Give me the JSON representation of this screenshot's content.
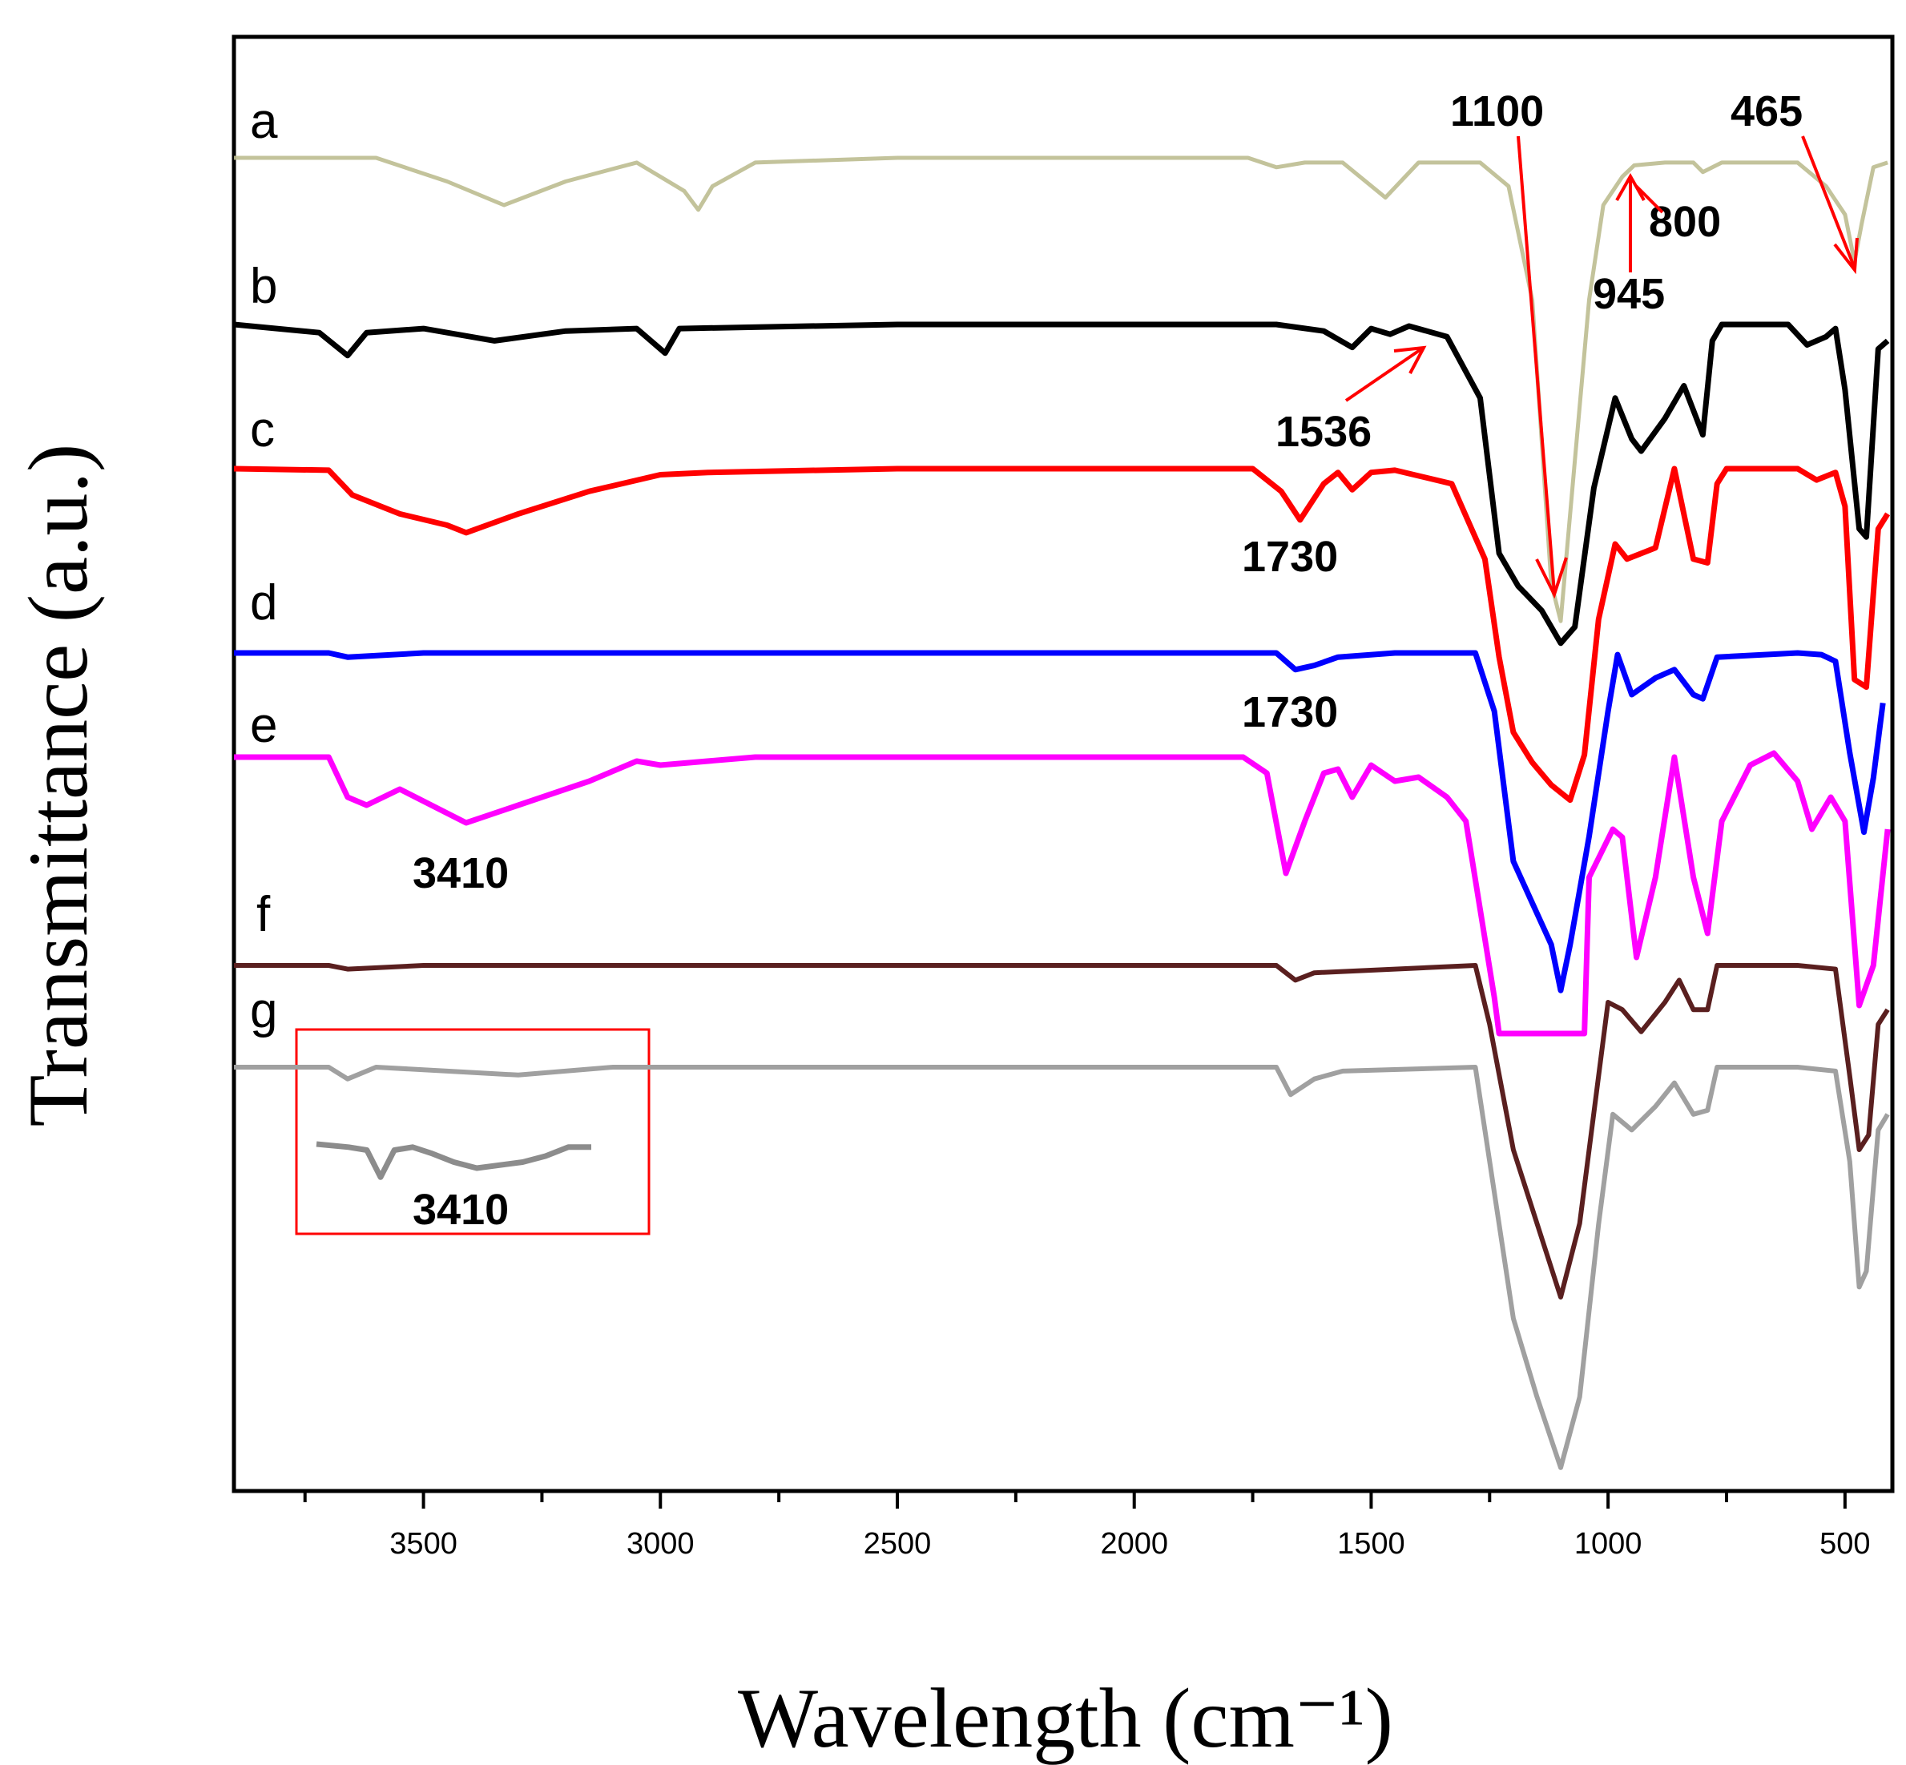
{
  "chart_data": {
    "type": "line",
    "title": "",
    "xlabel": "Wavelength (cm⁻¹)",
    "ylabel": "Transmittance (a.u.)",
    "xlim": [
      3900,
      400
    ],
    "x_reversed": true,
    "xticks": [
      3500,
      3000,
      2500,
      2000,
      1500,
      1000,
      500
    ],
    "grid": false,
    "series": [
      {
        "name": "a",
        "color": "#bcbc90",
        "points": [
          [
            3900,
            0
          ],
          [
            3600,
            0
          ],
          [
            3450,
            -0.25
          ],
          [
            3330,
            -0.5
          ],
          [
            3200,
            -0.25
          ],
          [
            3050,
            -0.05
          ],
          [
            2950,
            -0.35
          ],
          [
            2920,
            -0.55
          ],
          [
            2890,
            -0.3
          ],
          [
            2800,
            -0.05
          ],
          [
            2500,
            0
          ],
          [
            2000,
            0
          ],
          [
            1760,
            0
          ],
          [
            1700,
            -0.1
          ],
          [
            1640,
            -0.05
          ],
          [
            1560,
            -0.05
          ],
          [
            1470,
            -0.42
          ],
          [
            1400,
            -0.05
          ],
          [
            1270,
            -0.05
          ],
          [
            1210,
            -0.3
          ],
          [
            1160,
            -1.5
          ],
          [
            1120,
            -4.5
          ],
          [
            1100,
            -4.9
          ],
          [
            1070,
            -3.2
          ],
          [
            1040,
            -1.5
          ],
          [
            1010,
            -0.5
          ],
          [
            970,
            -0.2
          ],
          [
            945,
            -0.08
          ],
          [
            880,
            -0.05
          ],
          [
            820,
            -0.05
          ],
          [
            800,
            -0.15
          ],
          [
            760,
            -0.05
          ],
          [
            600,
            -0.05
          ],
          [
            540,
            -0.3
          ],
          [
            500,
            -0.6
          ],
          [
            480,
            -1.1
          ],
          [
            465,
            -0.7
          ],
          [
            440,
            -0.1
          ],
          [
            410,
            -0.05
          ]
        ]
      },
      {
        "name": "b",
        "color": "#000000",
        "points": [
          [
            3900,
            0
          ],
          [
            3720,
            -0.1
          ],
          [
            3660,
            -0.38
          ],
          [
            3620,
            -0.1
          ],
          [
            3500,
            -0.05
          ],
          [
            3350,
            -0.2
          ],
          [
            3200,
            -0.08
          ],
          [
            3050,
            -0.05
          ],
          [
            2990,
            -0.35
          ],
          [
            2960,
            -0.05
          ],
          [
            2500,
            0
          ],
          [
            2000,
            0
          ],
          [
            1700,
            0
          ],
          [
            1600,
            -0.08
          ],
          [
            1540,
            -0.28
          ],
          [
            1500,
            -0.05
          ],
          [
            1460,
            -0.12
          ],
          [
            1420,
            -0.02
          ],
          [
            1340,
            -0.15
          ],
          [
            1270,
            -0.9
          ],
          [
            1230,
            -2.8
          ],
          [
            1190,
            -3.2
          ],
          [
            1140,
            -3.5
          ],
          [
            1100,
            -3.9
          ],
          [
            1070,
            -3.7
          ],
          [
            1030,
            -2.0
          ],
          [
            985,
            -0.9
          ],
          [
            950,
            -1.4
          ],
          [
            930,
            -1.55
          ],
          [
            880,
            -1.15
          ],
          [
            840,
            -0.75
          ],
          [
            800,
            -1.35
          ],
          [
            780,
            -0.2
          ],
          [
            760,
            0
          ],
          [
            620,
            0
          ],
          [
            580,
            -0.25
          ],
          [
            540,
            -0.15
          ],
          [
            520,
            -0.05
          ],
          [
            500,
            -0.8
          ],
          [
            470,
            -2.5
          ],
          [
            455,
            -2.6
          ],
          [
            430,
            -0.3
          ],
          [
            410,
            -0.2
          ]
        ]
      },
      {
        "name": "c",
        "color": "#ff0000",
        "points": [
          [
            3900,
            0
          ],
          [
            3700,
            -0.02
          ],
          [
            3650,
            -0.35
          ],
          [
            3550,
            -0.6
          ],
          [
            3450,
            -0.75
          ],
          [
            3410,
            -0.85
          ],
          [
            3300,
            -0.6
          ],
          [
            3150,
            -0.3
          ],
          [
            3000,
            -0.08
          ],
          [
            2900,
            -0.05
          ],
          [
            2500,
            0
          ],
          [
            2000,
            0
          ],
          [
            1750,
            0
          ],
          [
            1690,
            -0.3
          ],
          [
            1650,
            -0.68
          ],
          [
            1600,
            -0.2
          ],
          [
            1570,
            -0.05
          ],
          [
            1540,
            -0.28
          ],
          [
            1500,
            -0.05
          ],
          [
            1450,
            -0.02
          ],
          [
            1330,
            -0.2
          ],
          [
            1260,
            -1.2
          ],
          [
            1230,
            -2.5
          ],
          [
            1200,
            -3.5
          ],
          [
            1160,
            -3.9
          ],
          [
            1120,
            -4.2
          ],
          [
            1080,
            -4.4
          ],
          [
            1050,
            -3.8
          ],
          [
            1020,
            -2.0
          ],
          [
            985,
            -1.0
          ],
          [
            960,
            -1.2
          ],
          [
            900,
            -1.05
          ],
          [
            860,
            -0.0
          ],
          [
            820,
            -1.2
          ],
          [
            790,
            -1.25
          ],
          [
            770,
            -0.2
          ],
          [
            750,
            0
          ],
          [
            600,
            0
          ],
          [
            560,
            -0.15
          ],
          [
            520,
            -0.05
          ],
          [
            500,
            -0.5
          ],
          [
            480,
            -2.8
          ],
          [
            455,
            -2.9
          ],
          [
            430,
            -0.8
          ],
          [
            410,
            -0.6
          ]
        ]
      },
      {
        "name": "d",
        "color": "#0000ff",
        "points": [
          [
            3900,
            0
          ],
          [
            3700,
            0
          ],
          [
            3660,
            -0.05
          ],
          [
            3500,
            0
          ],
          [
            2500,
            0
          ],
          [
            2000,
            0
          ],
          [
            1700,
            0
          ],
          [
            1660,
            -0.2
          ],
          [
            1620,
            -0.15
          ],
          [
            1570,
            -0.05
          ],
          [
            1450,
            0
          ],
          [
            1280,
            0
          ],
          [
            1240,
            -0.7
          ],
          [
            1200,
            -2.5
          ],
          [
            1160,
            -3.0
          ],
          [
            1120,
            -3.5
          ],
          [
            1100,
            -4.05
          ],
          [
            1080,
            -3.5
          ],
          [
            1040,
            -2.2
          ],
          [
            1000,
            -0.7
          ],
          [
            980,
            -0.02
          ],
          [
            950,
            -0.5
          ],
          [
            900,
            -0.3
          ],
          [
            860,
            -0.2
          ],
          [
            820,
            -0.5
          ],
          [
            800,
            -0.55
          ],
          [
            770,
            -0.05
          ],
          [
            600,
            0
          ],
          [
            550,
            -0.02
          ],
          [
            520,
            -0.1
          ],
          [
            490,
            -1.2
          ],
          [
            460,
            -2.15
          ],
          [
            440,
            -1.5
          ],
          [
            420,
            -0.6
          ]
        ]
      },
      {
        "name": "e",
        "color": "#ff00ff",
        "points": [
          [
            3900,
            0
          ],
          [
            3700,
            0
          ],
          [
            3660,
            -0.5
          ],
          [
            3620,
            -0.6
          ],
          [
            3550,
            -0.4
          ],
          [
            3450,
            -0.7
          ],
          [
            3410,
            -0.82
          ],
          [
            3300,
            -0.6
          ],
          [
            3150,
            -0.3
          ],
          [
            3050,
            -0.05
          ],
          [
            3000,
            -0.1
          ],
          [
            2800,
            0
          ],
          [
            2500,
            0
          ],
          [
            2000,
            0
          ],
          [
            1770,
            0
          ],
          [
            1720,
            -0.2
          ],
          [
            1680,
            -1.45
          ],
          [
            1640,
            -0.8
          ],
          [
            1600,
            -0.2
          ],
          [
            1570,
            -0.15
          ],
          [
            1540,
            -0.5
          ],
          [
            1500,
            -0.1
          ],
          [
            1450,
            -0.3
          ],
          [
            1400,
            -0.25
          ],
          [
            1340,
            -0.5
          ],
          [
            1300,
            -0.8
          ],
          [
            1240,
            -3.0
          ],
          [
            1230,
            -3.45
          ],
          [
            1050,
            -3.45
          ],
          [
            1040,
            -1.5
          ],
          [
            990,
            -0.9
          ],
          [
            970,
            -1.0
          ],
          [
            940,
            -2.5
          ],
          [
            900,
            -1.5
          ],
          [
            860,
            0
          ],
          [
            820,
            -1.5
          ],
          [
            790,
            -2.2
          ],
          [
            760,
            -0.8
          ],
          [
            700,
            -0.1
          ],
          [
            650,
            0.05
          ],
          [
            600,
            -0.3
          ],
          [
            570,
            -0.9
          ],
          [
            530,
            -0.5
          ],
          [
            500,
            -0.8
          ],
          [
            470,
            -3.1
          ],
          [
            440,
            -2.6
          ],
          [
            410,
            -0.9
          ]
        ]
      },
      {
        "name": "f",
        "color": "#5a1f1f",
        "points": [
          [
            3900,
            0
          ],
          [
            3700,
            0
          ],
          [
            3660,
            -0.05
          ],
          [
            3500,
            0
          ],
          [
            2500,
            0
          ],
          [
            2000,
            0
          ],
          [
            1700,
            0
          ],
          [
            1660,
            -0.2
          ],
          [
            1620,
            -0.1
          ],
          [
            1280,
            0
          ],
          [
            1250,
            -0.8
          ],
          [
            1200,
            -2.5
          ],
          [
            1150,
            -3.5
          ],
          [
            1100,
            -4.5
          ],
          [
            1060,
            -3.5
          ],
          [
            1020,
            -1.5
          ],
          [
            1000,
            -0.5
          ],
          [
            970,
            -0.6
          ],
          [
            930,
            -0.9
          ],
          [
            880,
            -0.5
          ],
          [
            850,
            -0.2
          ],
          [
            820,
            -0.6
          ],
          [
            790,
            -0.6
          ],
          [
            770,
            0
          ],
          [
            600,
            0
          ],
          [
            520,
            -0.05
          ],
          [
            490,
            -1.5
          ],
          [
            470,
            -2.5
          ],
          [
            450,
            -2.3
          ],
          [
            430,
            -0.8
          ],
          [
            410,
            -0.6
          ]
        ]
      },
      {
        "name": "g",
        "color": "#a0a0a0",
        "points": [
          [
            3900,
            0
          ],
          [
            3700,
            0
          ],
          [
            3660,
            -0.15
          ],
          [
            3600,
            0
          ],
          [
            3450,
            -0.05
          ],
          [
            3300,
            -0.1
          ],
          [
            3100,
            0
          ],
          [
            2500,
            0
          ],
          [
            2000,
            0
          ],
          [
            1700,
            0
          ],
          [
            1670,
            -0.35
          ],
          [
            1620,
            -0.15
          ],
          [
            1560,
            -0.05
          ],
          [
            1280,
            0
          ],
          [
            1250,
            -1.2
          ],
          [
            1200,
            -3.2
          ],
          [
            1150,
            -4.2
          ],
          [
            1100,
            -5.1
          ],
          [
            1060,
            -4.2
          ],
          [
            1020,
            -2.0
          ],
          [
            990,
            -0.6
          ],
          [
            950,
            -0.8
          ],
          [
            900,
            -0.5
          ],
          [
            860,
            -0.2
          ],
          [
            820,
            -0.6
          ],
          [
            790,
            -0.55
          ],
          [
            770,
            0
          ],
          [
            600,
            0
          ],
          [
            520,
            -0.05
          ],
          [
            490,
            -1.2
          ],
          [
            470,
            -2.8
          ],
          [
            455,
            -2.6
          ],
          [
            430,
            -0.8
          ],
          [
            410,
            -0.6
          ]
        ]
      }
    ],
    "inset": {
      "series": "g",
      "label": "3410",
      "color": "#8c8c8c",
      "points": [
        [
          3750,
          0
        ],
        [
          3680,
          -0.05
        ],
        [
          3640,
          -0.1
        ],
        [
          3610,
          -0.55
        ],
        [
          3580,
          -0.1
        ],
        [
          3540,
          -0.05
        ],
        [
          3500,
          -0.15
        ],
        [
          3450,
          -0.3
        ],
        [
          3400,
          -0.4
        ],
        [
          3300,
          -0.3
        ],
        [
          3250,
          -0.2
        ],
        [
          3200,
          -0.05
        ],
        [
          3150,
          -0.05
        ]
      ]
    },
    "annotations": [
      {
        "text": "1100",
        "color": "#ff0000",
        "peak": 1100
      },
      {
        "text": "465",
        "color": "#ff0000",
        "peak": 465
      },
      {
        "text": "800",
        "color": "#ff0000",
        "peak": 800
      },
      {
        "text": "945",
        "color": "#ff0000",
        "peak": 945
      },
      {
        "text": "1536",
        "color": "#ff0000",
        "peak": 1536
      },
      {
        "text": "1730",
        "color": "#000000",
        "peak": 1730
      },
      {
        "text": "1730",
        "color": "#000000",
        "peak": 1730
      },
      {
        "text": "3410",
        "color": "#000000",
        "peak": 3410
      }
    ]
  }
}
